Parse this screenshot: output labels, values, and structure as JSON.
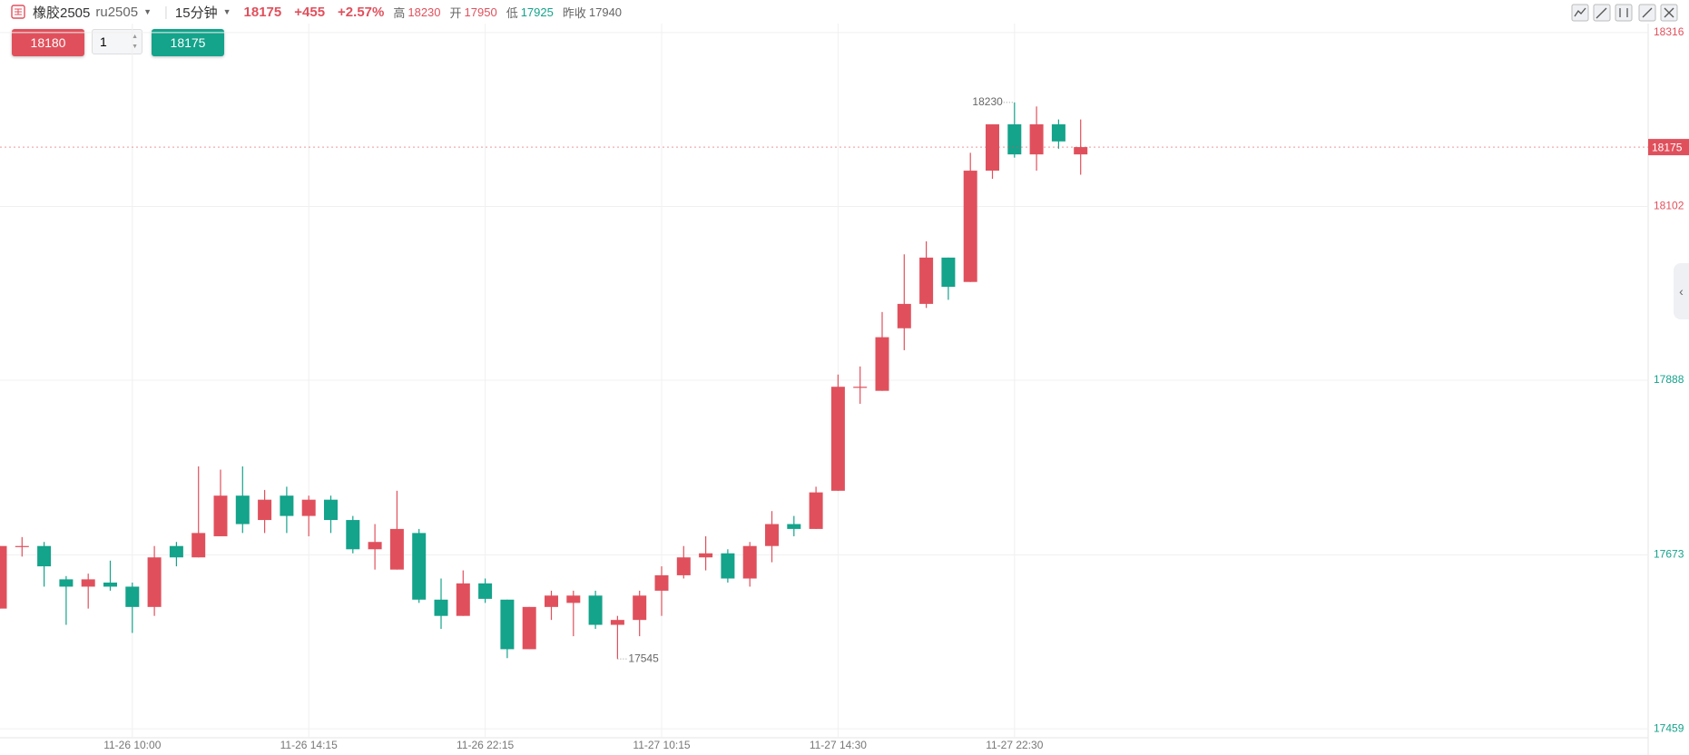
{
  "header": {
    "name": "橡胶2505",
    "code": "ru2505",
    "period": "15分钟",
    "price": "18175",
    "change": "+455",
    "change_pct": "+2.57%",
    "high_label": "高",
    "high": "18230",
    "open_label": "开",
    "open": "17950",
    "low_label": "低",
    "low": "17925",
    "prev_close_label": "昨收",
    "prev_close": 17940
  },
  "order": {
    "buy_price": "18180",
    "quantity": "1",
    "sell_price": "18175"
  },
  "chart_data": {
    "type": "candlestick",
    "categories": [
      null,
      null,
      null,
      null,
      null,
      null,
      "11-26 10:00",
      null,
      null,
      null,
      null,
      null,
      null,
      null,
      "11-26 14:15",
      null,
      null,
      null,
      null,
      null,
      null,
      null,
      "11-26 22:15",
      null,
      null,
      null,
      null,
      null,
      null,
      null,
      "11-27 10:15",
      null,
      null,
      null,
      null,
      null,
      null,
      null,
      "11-27 14:30",
      null,
      null,
      null,
      null,
      null,
      null,
      null,
      "11-27 22:30",
      null,
      null,
      null
    ],
    "open": [
      17607,
      17684,
      17684,
      17643,
      17634,
      17639,
      17634,
      17609,
      17684,
      17670,
      17696,
      17746,
      17716,
      17746,
      17721,
      17741,
      17716,
      17680,
      17655,
      17700,
      17618,
      17598,
      17638,
      17618,
      17557,
      17609,
      17614,
      17623,
      17587,
      17593,
      17629,
      17648,
      17670,
      17675,
      17644,
      17684,
      17711,
      17705,
      17752,
      17880,
      17875,
      17952,
      17982,
      18039,
      18009,
      18146,
      18203,
      18166,
      18203,
      18166
    ],
    "high": [
      17684,
      17695,
      17689,
      17647,
      17650,
      17666,
      17639,
      17684,
      17689,
      17782,
      17778,
      17782,
      17753,
      17757,
      17746,
      17746,
      17721,
      17711,
      17752,
      17705,
      17644,
      17654,
      17644,
      17618,
      17609,
      17629,
      17629,
      17629,
      17598,
      17629,
      17659,
      17684,
      17696,
      17680,
      17689,
      17727,
      17721,
      17757,
      17895,
      17905,
      17972,
      18043,
      18059,
      18039,
      18168,
      18203,
      18230,
      18225,
      18209,
      18209
    ],
    "low": [
      17607,
      17671,
      17634,
      17587,
      17607,
      17629,
      17577,
      17598,
      17659,
      17670,
      17696,
      17700,
      17700,
      17700,
      17696,
      17700,
      17675,
      17655,
      17655,
      17614,
      17582,
      17598,
      17614,
      17546,
      17557,
      17593,
      17573,
      17582,
      17545,
      17573,
      17598,
      17644,
      17654,
      17639,
      17634,
      17664,
      17696,
      17705,
      17752,
      17859,
      17875,
      17925,
      17977,
      17987,
      18009,
      18136,
      18162,
      18146,
      18173,
      18141
    ],
    "close": [
      17684,
      17684,
      17659,
      17634,
      17643,
      17634,
      17609,
      17670,
      17670,
      17700,
      17746,
      17711,
      17741,
      17721,
      17741,
      17716,
      17680,
      17689,
      17705,
      17618,
      17598,
      17638,
      17619,
      17557,
      17609,
      17623,
      17623,
      17587,
      17593,
      17623,
      17648,
      17670,
      17675,
      17644,
      17684,
      17711,
      17705,
      17750,
      17880,
      17880,
      17941,
      17982,
      18039,
      18003,
      18146,
      18203,
      18166,
      18203,
      18182,
      18175
    ],
    "up_color": "#e0505c",
    "down_color": "#14a38b",
    "ylim": [
      17448,
      18327
    ],
    "yticks": [
      17459,
      17673,
      17888,
      18102,
      18316
    ],
    "grid": true
  }
}
